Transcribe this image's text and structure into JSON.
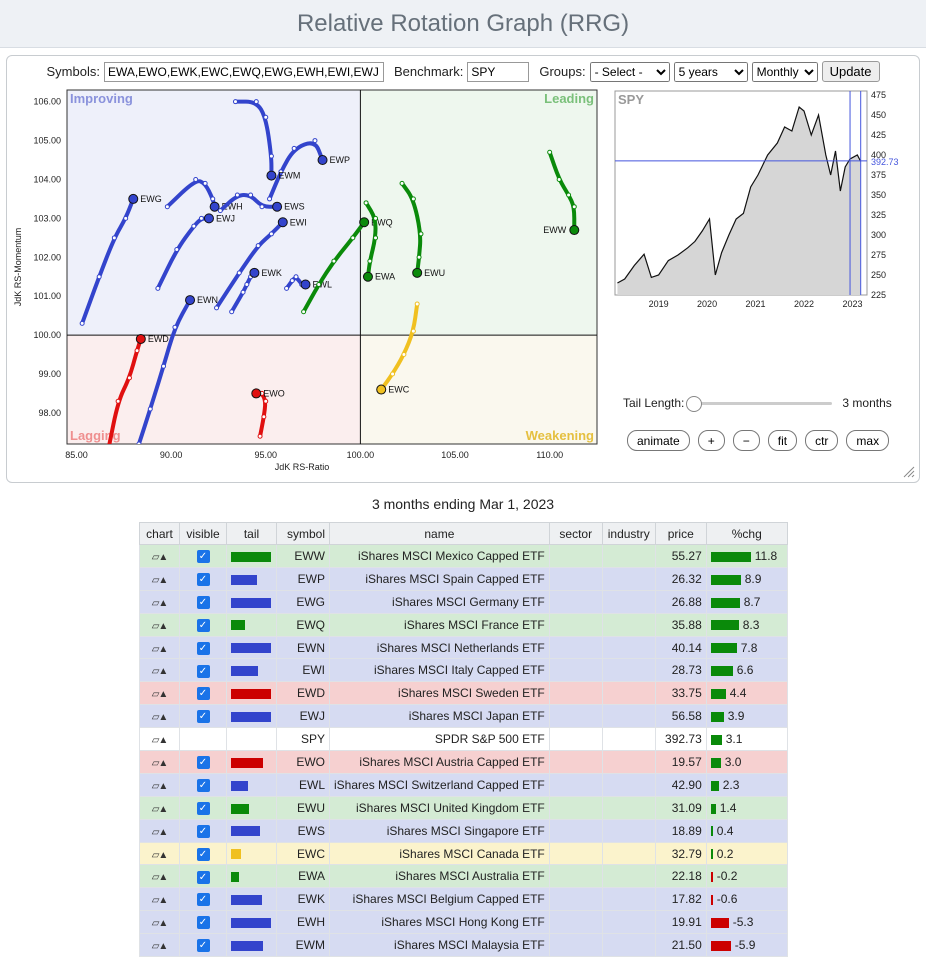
{
  "title": "Relative Rotation Graph (RRG)",
  "controls": {
    "symbols_label": "Symbols:",
    "symbols_value": "EWA,EWO,EWK,EWC,EWQ,EWG,EWH,EWI,EWJ,E",
    "benchmark_label": "Benchmark:",
    "benchmark_value": "SPY",
    "groups_label": "Groups:",
    "groups_value": "- Select -",
    "period_value": "5 years",
    "freq_value": "Monthly",
    "update_label": "Update"
  },
  "rrg": {
    "x_axis_label": "JdK RS-Ratio",
    "y_axis_label": "JdK RS-Momentum",
    "xlim": [
      84.5,
      112.5
    ],
    "ylim": [
      97.2,
      106.3
    ],
    "x_ticks": [
      "85.00",
      "90.00",
      "95.00",
      "100.00",
      "105.00",
      "110.00"
    ],
    "y_ticks": [
      "106.00",
      "105.00",
      "104.00",
      "103.00",
      "102.00",
      "101.00",
      "100.00",
      "99.00",
      "98.00"
    ],
    "quadrants": {
      "improving": "Improving",
      "leading": "Leading",
      "lagging": "Lagging",
      "weakening": "Weakening"
    },
    "colors": {
      "blue": "#3344cc",
      "green": "#0a8a0a",
      "red": "#e01010",
      "yellow": "#f0c020",
      "improving_bg": "#eef0fa",
      "leading_bg": "#eef7ee",
      "lagging_bg": "#fbeeee",
      "weakening_bg": "#faf8ee"
    },
    "series": [
      {
        "symbol": "EWP",
        "color": "blue",
        "points": [
          [
            95.2,
            103.5
          ],
          [
            95.8,
            104.2
          ],
          [
            96.5,
            104.8
          ],
          [
            97.6,
            105.0
          ],
          [
            98.0,
            104.5
          ]
        ]
      },
      {
        "symbol": "EWM",
        "color": "blue",
        "points": [
          [
            93.4,
            106.0
          ],
          [
            94.5,
            106.0
          ],
          [
            95.0,
            105.6
          ],
          [
            95.3,
            104.6
          ],
          [
            95.3,
            104.1
          ]
        ]
      },
      {
        "symbol": "EWG",
        "color": "blue",
        "points": [
          [
            85.3,
            100.3
          ],
          [
            86.2,
            101.5
          ],
          [
            87.0,
            102.5
          ],
          [
            87.6,
            103.0
          ],
          [
            88.0,
            103.5
          ]
        ]
      },
      {
        "symbol": "EWH",
        "color": "blue",
        "points": [
          [
            89.8,
            103.3
          ],
          [
            91.3,
            104.0
          ],
          [
            91.8,
            103.9
          ],
          [
            92.2,
            103.5
          ],
          [
            92.3,
            103.3
          ]
        ]
      },
      {
        "symbol": "EWS",
        "color": "blue",
        "points": [
          [
            92.6,
            103.2
          ],
          [
            93.5,
            103.6
          ],
          [
            94.2,
            103.6
          ],
          [
            94.8,
            103.3
          ],
          [
            95.6,
            103.3
          ]
        ]
      },
      {
        "symbol": "EWJ",
        "color": "blue",
        "points": [
          [
            89.3,
            101.2
          ],
          [
            90.3,
            102.2
          ],
          [
            91.2,
            102.8
          ],
          [
            91.6,
            103.0
          ],
          [
            92.0,
            103.0
          ]
        ]
      },
      {
        "symbol": "EWI",
        "color": "blue",
        "points": [
          [
            92.4,
            100.7
          ],
          [
            93.6,
            101.6
          ],
          [
            94.6,
            102.3
          ],
          [
            95.3,
            102.6
          ],
          [
            95.9,
            102.9
          ]
        ]
      },
      {
        "symbol": "EWK",
        "color": "blue",
        "points": [
          [
            93.2,
            100.6
          ],
          [
            93.8,
            101.1
          ],
          [
            94.0,
            101.3
          ],
          [
            94.2,
            101.5
          ],
          [
            94.4,
            101.6
          ]
        ]
      },
      {
        "symbol": "EWL",
        "color": "blue",
        "points": [
          [
            96.1,
            101.2
          ],
          [
            96.4,
            101.4
          ],
          [
            96.6,
            101.5
          ],
          [
            96.9,
            101.3
          ],
          [
            97.1,
            101.3
          ]
        ]
      },
      {
        "symbol": "EWN",
        "color": "blue",
        "points": [
          [
            88.3,
            97.2
          ],
          [
            88.9,
            98.1
          ],
          [
            89.6,
            99.2
          ],
          [
            90.2,
            100.2
          ],
          [
            91.0,
            100.9
          ]
        ]
      },
      {
        "symbol": "EWQ",
        "color": "green",
        "points": [
          [
            97.0,
            100.6
          ],
          [
            97.8,
            101.3
          ],
          [
            98.6,
            101.9
          ],
          [
            99.6,
            102.5
          ],
          [
            100.2,
            102.9
          ]
        ]
      },
      {
        "symbol": "EWA",
        "color": "green",
        "points": [
          [
            100.3,
            103.4
          ],
          [
            100.8,
            103.0
          ],
          [
            100.8,
            102.5
          ],
          [
            100.5,
            101.9
          ],
          [
            100.4,
            101.5
          ]
        ]
      },
      {
        "symbol": "EWU",
        "color": "green",
        "points": [
          [
            102.2,
            103.9
          ],
          [
            102.8,
            103.5
          ],
          [
            103.2,
            102.6
          ],
          [
            103.1,
            102.0
          ],
          [
            103.0,
            101.6
          ]
        ]
      },
      {
        "symbol": "EWW",
        "color": "green",
        "points": [
          [
            110.0,
            104.7
          ],
          [
            110.5,
            104.0
          ],
          [
            111.0,
            103.6
          ],
          [
            111.3,
            103.3
          ],
          [
            111.3,
            102.7
          ]
        ]
      },
      {
        "symbol": "EWD",
        "color": "red",
        "points": [
          [
            86.7,
            97.1
          ],
          [
            87.2,
            98.3
          ],
          [
            87.8,
            98.9
          ],
          [
            88.2,
            99.6
          ],
          [
            88.4,
            99.9
          ]
        ]
      },
      {
        "symbol": "EWO",
        "color": "red",
        "points": [
          [
            94.7,
            97.4
          ],
          [
            94.9,
            97.9
          ],
          [
            95.0,
            98.3
          ],
          [
            94.8,
            98.5
          ],
          [
            94.5,
            98.5
          ]
        ]
      },
      {
        "symbol": "EWC",
        "color": "yellow",
        "points": [
          [
            103.0,
            100.8
          ],
          [
            102.8,
            100.1
          ],
          [
            102.3,
            99.5
          ],
          [
            101.7,
            99.0
          ],
          [
            101.1,
            98.6
          ]
        ]
      }
    ]
  },
  "benchmark_chart": {
    "label": "SPY",
    "current_value": "392.73",
    "y_ticks": [
      "475",
      "450",
      "425",
      "400",
      "375",
      "350",
      "325",
      "300",
      "275",
      "250",
      "225"
    ],
    "x_ticks": [
      "2019",
      "2020",
      "2021",
      "2022",
      "2023"
    ],
    "ylim": [
      225,
      480
    ],
    "xlim": [
      2018.1,
      2023.3
    ],
    "values": [
      [
        2018.15,
        240
      ],
      [
        2018.3,
        245
      ],
      [
        2018.5,
        262
      ],
      [
        2018.7,
        276
      ],
      [
        2018.85,
        247
      ],
      [
        2019.0,
        250
      ],
      [
        2019.2,
        268
      ],
      [
        2019.4,
        275
      ],
      [
        2019.6,
        284
      ],
      [
        2019.75,
        292
      ],
      [
        2019.9,
        305
      ],
      [
        2020.05,
        320
      ],
      [
        2020.17,
        250
      ],
      [
        2020.3,
        278
      ],
      [
        2020.45,
        300
      ],
      [
        2020.6,
        320
      ],
      [
        2020.75,
        327
      ],
      [
        2020.9,
        360
      ],
      [
        2021.05,
        375
      ],
      [
        2021.25,
        400
      ],
      [
        2021.45,
        415
      ],
      [
        2021.6,
        435
      ],
      [
        2021.75,
        430
      ],
      [
        2021.9,
        460
      ],
      [
        2022.0,
        455
      ],
      [
        2022.15,
        425
      ],
      [
        2022.3,
        450
      ],
      [
        2022.45,
        400
      ],
      [
        2022.55,
        375
      ],
      [
        2022.65,
        405
      ],
      [
        2022.75,
        355
      ],
      [
        2022.85,
        385
      ],
      [
        2022.95,
        395
      ],
      [
        2023.1,
        400
      ],
      [
        2023.17,
        392
      ]
    ]
  },
  "tail": {
    "label": "Tail Length:",
    "value": "3 months",
    "fraction": 0.0
  },
  "buttons": {
    "animate": "animate",
    "plus": "+",
    "minus": "−",
    "fit": "fit",
    "ctr": "ctr",
    "max": "max"
  },
  "caption": "3 months ending Mar 1, 2023",
  "table": {
    "headers": {
      "chart": "chart",
      "visible": "visible",
      "tail": "tail",
      "symbol": "symbol",
      "name": "name",
      "sector": "sector",
      "industry": "industry",
      "price": "price",
      "chg": "%chg"
    },
    "rows": [
      {
        "symbol": "EWW",
        "name": "iShares MSCI Mexico Capped ETF",
        "price": "55.27",
        "chg": "11.8",
        "chg_value": 11.8,
        "color": "green",
        "tail_len": 1.0,
        "visible": true
      },
      {
        "symbol": "EWP",
        "name": "iShares MSCI Spain Capped ETF",
        "price": "26.32",
        "chg": "8.9",
        "chg_value": 8.9,
        "color": "blue",
        "tail_len": 0.65,
        "visible": true
      },
      {
        "symbol": "EWG",
        "name": "iShares MSCI Germany ETF",
        "price": "26.88",
        "chg": "8.7",
        "chg_value": 8.7,
        "color": "blue",
        "tail_len": 1.0,
        "visible": true
      },
      {
        "symbol": "EWQ",
        "name": "iShares MSCI France ETF",
        "price": "35.88",
        "chg": "8.3",
        "chg_value": 8.3,
        "color": "green",
        "tail_len": 0.35,
        "visible": true
      },
      {
        "symbol": "EWN",
        "name": "iShares MSCI Netherlands ETF",
        "price": "40.14",
        "chg": "7.8",
        "chg_value": 7.8,
        "color": "blue",
        "tail_len": 1.0,
        "visible": true
      },
      {
        "symbol": "EWI",
        "name": "iShares MSCI Italy Capped ETF",
        "price": "28.73",
        "chg": "6.6",
        "chg_value": 6.6,
        "color": "blue",
        "tail_len": 0.68,
        "visible": true
      },
      {
        "symbol": "EWD",
        "name": "iShares MSCI Sweden ETF",
        "price": "33.75",
        "chg": "4.4",
        "chg_value": 4.4,
        "color": "red",
        "tail_len": 1.0,
        "visible": true
      },
      {
        "symbol": "EWJ",
        "name": "iShares MSCI Japan ETF",
        "price": "56.58",
        "chg": "3.9",
        "chg_value": 3.9,
        "color": "blue",
        "tail_len": 1.0,
        "visible": true
      },
      {
        "symbol": "SPY",
        "name": "SPDR S&P 500 ETF",
        "price": "392.73",
        "chg": "3.1",
        "chg_value": 3.1,
        "color": "none",
        "tail_len": 0,
        "visible": false
      },
      {
        "symbol": "EWO",
        "name": "iShares MSCI Austria Capped ETF",
        "price": "19.57",
        "chg": "3.0",
        "chg_value": 3.0,
        "color": "red",
        "tail_len": 0.8,
        "visible": true
      },
      {
        "symbol": "EWL",
        "name": "iShares MSCI Switzerland Capped ETF",
        "price": "42.90",
        "chg": "2.3",
        "chg_value": 2.3,
        "color": "blue",
        "tail_len": 0.42,
        "visible": true
      },
      {
        "symbol": "EWU",
        "name": "iShares MSCI United Kingdom ETF",
        "price": "31.09",
        "chg": "1.4",
        "chg_value": 1.4,
        "color": "green",
        "tail_len": 0.45,
        "visible": true
      },
      {
        "symbol": "EWS",
        "name": "iShares MSCI Singapore ETF",
        "price": "18.89",
        "chg": "0.4",
        "chg_value": 0.4,
        "color": "blue",
        "tail_len": 0.72,
        "visible": true
      },
      {
        "symbol": "EWC",
        "name": "iShares MSCI Canada ETF",
        "price": "32.79",
        "chg": "0.2",
        "chg_value": 0.2,
        "color": "yellow",
        "tail_len": 0.25,
        "visible": true
      },
      {
        "symbol": "EWA",
        "name": "iShares MSCI Australia ETF",
        "price": "22.18",
        "chg": "-0.2",
        "chg_value": -0.2,
        "color": "green",
        "tail_len": 0.2,
        "visible": true
      },
      {
        "symbol": "EWK",
        "name": "iShares MSCI Belgium Capped ETF",
        "price": "17.82",
        "chg": "-0.6",
        "chg_value": -0.6,
        "color": "blue",
        "tail_len": 0.78,
        "visible": true
      },
      {
        "symbol": "EWH",
        "name": "iShares MSCI Hong Kong ETF",
        "price": "19.91",
        "chg": "-5.3",
        "chg_value": -5.3,
        "color": "blue",
        "tail_len": 1.0,
        "visible": true
      },
      {
        "symbol": "EWM",
        "name": "iShares MSCI Malaysia ETF",
        "price": "21.50",
        "chg": "-5.9",
        "chg_value": -5.9,
        "color": "blue",
        "tail_len": 0.8,
        "visible": true
      }
    ],
    "row_bg": {
      "green": "#d4ebd4",
      "blue": "#d6dbf2",
      "red": "#f6d0d0",
      "yellow": "#fbf3cc",
      "none": "#ffffff"
    }
  }
}
